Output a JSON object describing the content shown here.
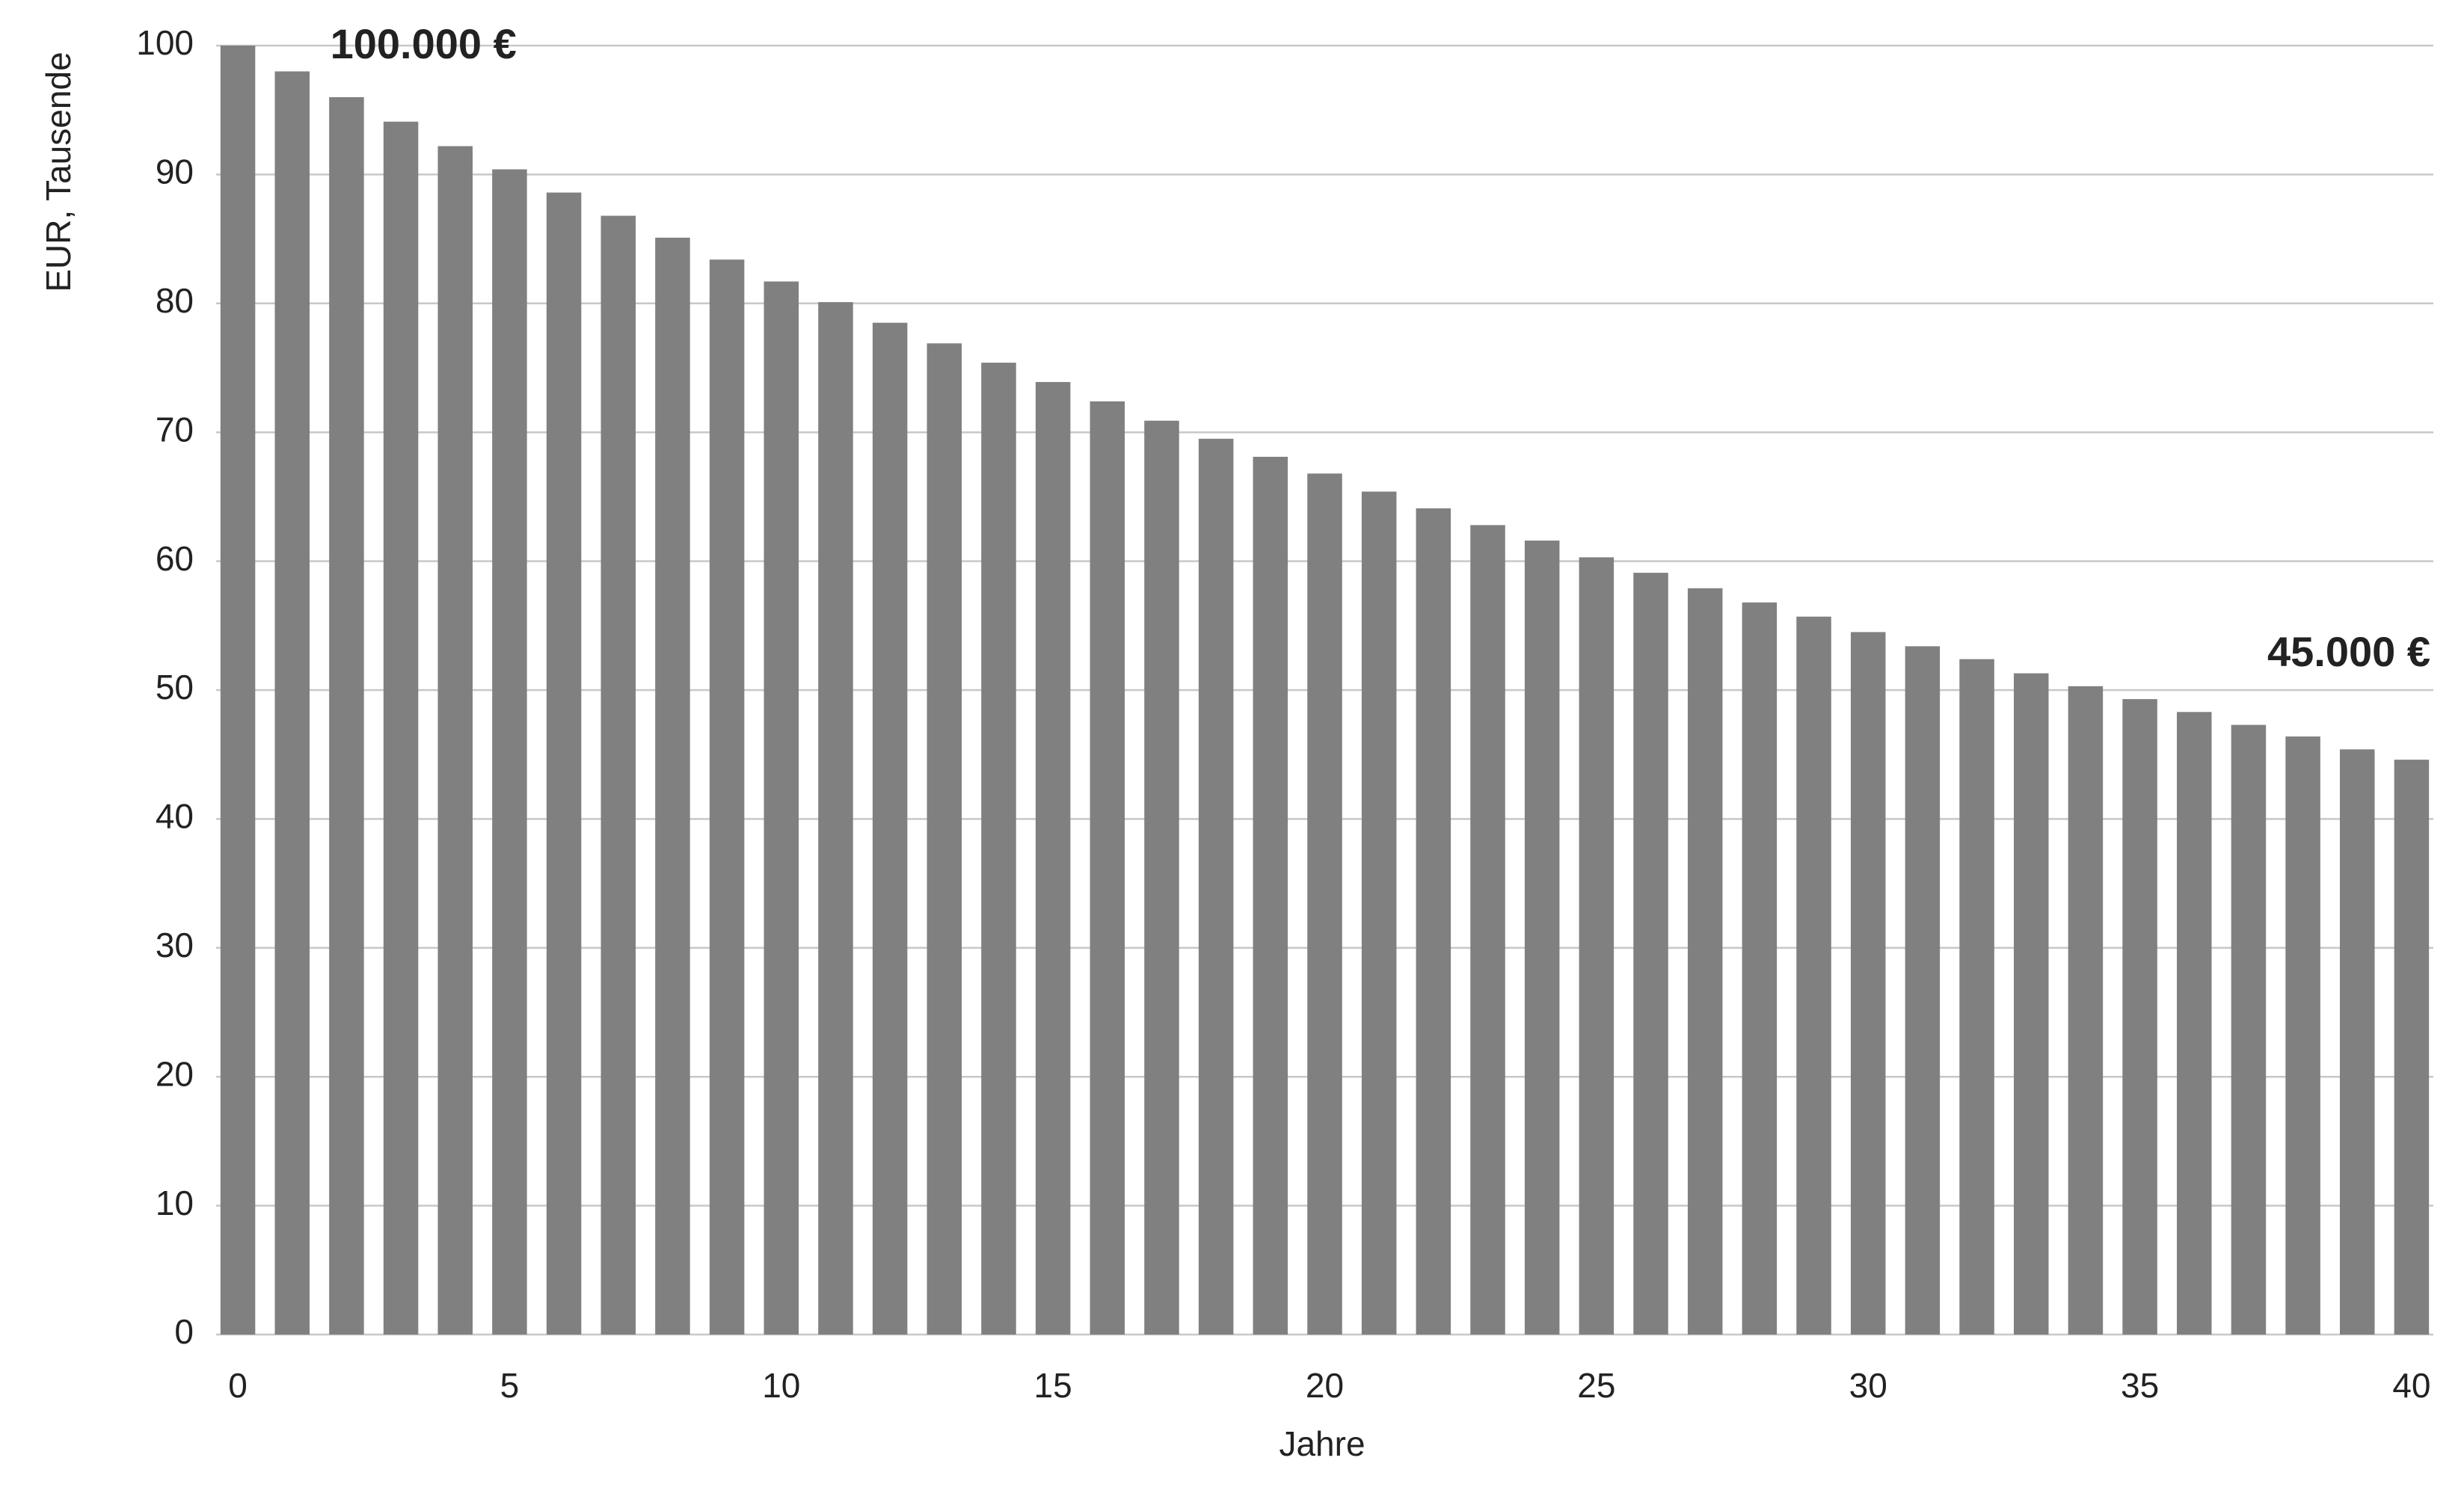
{
  "chart_data": {
    "type": "bar",
    "y_label": "EUR, Tausende",
    "x_label": "Jahre",
    "annotations": [
      "100.000 €",
      "45.000 €"
    ],
    "x": [
      0,
      1,
      2,
      3,
      4,
      5,
      6,
      7,
      8,
      9,
      10,
      11,
      12,
      13,
      14,
      15,
      16,
      17,
      18,
      19,
      20,
      21,
      22,
      23,
      24,
      25,
      26,
      27,
      28,
      29,
      30,
      31,
      32,
      33,
      34,
      35,
      36,
      37,
      38,
      39,
      40
    ],
    "values": [
      100,
      98,
      96,
      94.1,
      92.2,
      90.4,
      88.6,
      86.8,
      85.1,
      83.4,
      81.7,
      80.1,
      78.5,
      76.9,
      75.4,
      73.9,
      72.4,
      70.9,
      69.5,
      68.1,
      66.8,
      65.4,
      64.1,
      62.8,
      61.6,
      60.3,
      59.1,
      57.9,
      56.8,
      55.7,
      54.5,
      53.4,
      52.4,
      51.3,
      50.3,
      49.3,
      48.3,
      47.3,
      46.4,
      45.4,
      44.6
    ],
    "color": "#808080",
    "xlim": [
      -0.4,
      40.4
    ],
    "xticks": [
      0,
      5,
      10,
      15,
      20,
      25,
      30,
      35,
      40
    ],
    "ylim": [
      0,
      100
    ],
    "yticks": [
      0,
      10,
      20,
      30,
      40,
      50,
      60,
      70,
      80,
      90,
      100
    ],
    "grid": true
  }
}
